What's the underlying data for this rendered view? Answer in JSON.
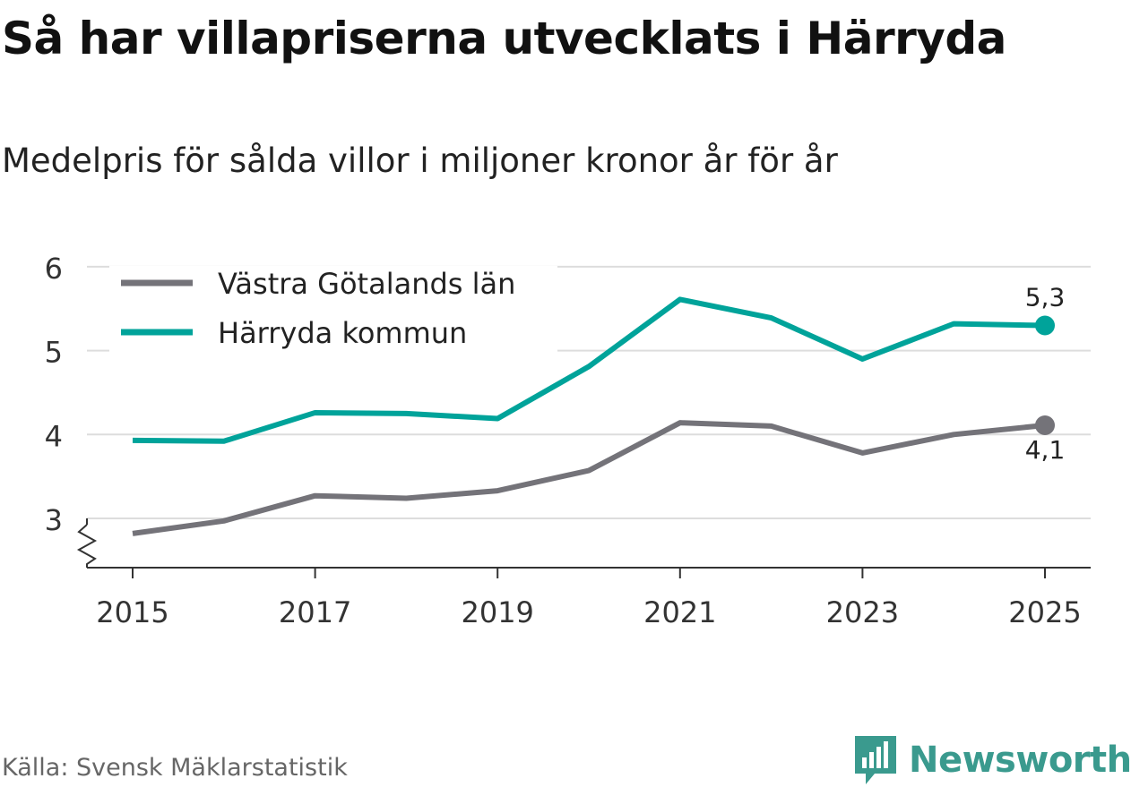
{
  "title": "Så har villapriserna utvecklats i Härryda",
  "subtitle": "Medelpris för sålda villor i miljoner kronor år för år",
  "source": "Källa: Svensk Mäklarstatistik",
  "brand": "Newsworthy",
  "colors": {
    "gray": "#747379",
    "teal": "#00a39a",
    "grid": "#dddddd"
  },
  "chart_data": {
    "type": "line",
    "title": "Så har villapriserna utvecklats i Härryda",
    "ylabel": "",
    "xlabel": "",
    "ylim": [
      2.45,
      6
    ],
    "yticks": [
      "6",
      "5",
      "4",
      "3"
    ],
    "ytick_values": [
      6,
      5,
      4,
      3
    ],
    "xticks": [
      "2015",
      "2017",
      "2019",
      "2021",
      "2023",
      "2025"
    ],
    "xtick_values": [
      2015,
      2017,
      2019,
      2021,
      2023,
      2025
    ],
    "x": [
      2015,
      2016,
      2017,
      2018,
      2019,
      2020,
      2021,
      2022,
      2023,
      2024,
      2025
    ],
    "series": [
      {
        "name": "Västra Götalands län",
        "color": "#747379",
        "values": [
          2.82,
          2.97,
          3.27,
          3.24,
          3.33,
          3.57,
          4.14,
          4.1,
          3.78,
          4.0,
          4.11
        ],
        "end_label": "4,1"
      },
      {
        "name": "Härryda kommun",
        "color": "#00a39a",
        "values": [
          3.93,
          3.92,
          4.26,
          4.25,
          4.19,
          4.81,
          5.61,
          5.39,
          4.9,
          5.32,
          5.3
        ],
        "end_label": "5,3"
      }
    ],
    "legend": "top-left",
    "grid": true
  }
}
